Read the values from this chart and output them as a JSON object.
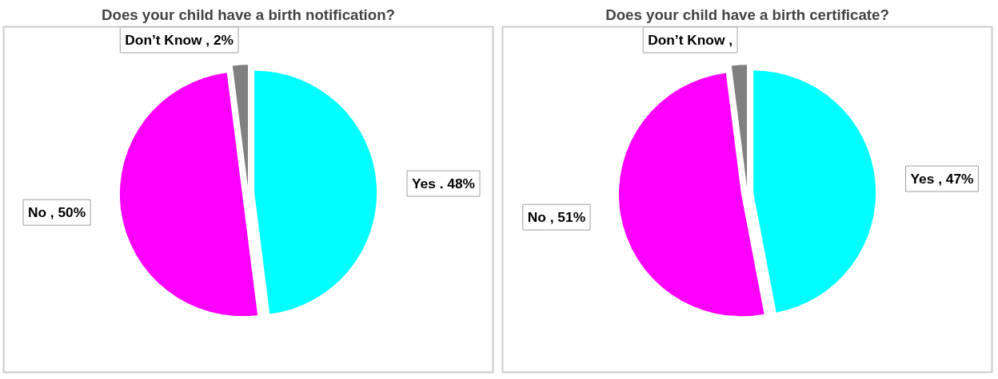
{
  "chart_data": [
    {
      "type": "pie",
      "title": "Does your child have a birth notification?",
      "categories": [
        "Yes",
        "No",
        "Don’t Know"
      ],
      "values": [
        48,
        50,
        2
      ],
      "colors": [
        "#00ffff",
        "#ff00ff",
        "#808080"
      ],
      "value_labels": [
        ". 48%",
        ", 50%",
        ", 2%"
      ]
    },
    {
      "type": "pie",
      "title": "Does your child have a birth certificate?",
      "categories": [
        "Yes",
        "No",
        "Don’t Know"
      ],
      "values": [
        47,
        51,
        2
      ],
      "colors": [
        "#00ffff",
        "#ff00ff",
        "#808080"
      ],
      "value_labels": [
        ", 47%",
        ", 51%",
        ","
      ]
    }
  ]
}
